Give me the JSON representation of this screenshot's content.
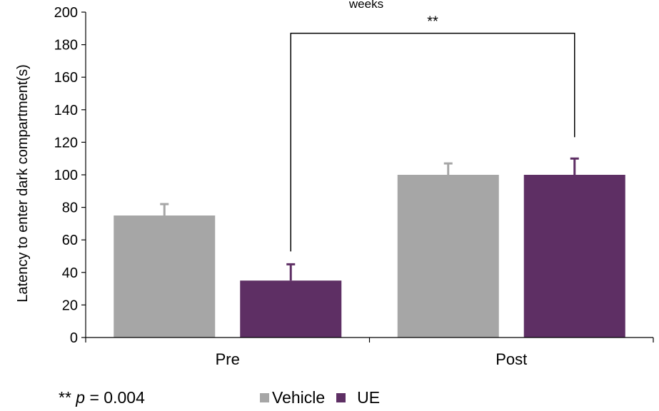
{
  "chart_data": {
    "type": "bar",
    "title": "weeks",
    "ylabel": "Latency to enter dark compartment(s)",
    "xlabel": "",
    "categories": [
      "Pre",
      "Post"
    ],
    "ylim": [
      0,
      200
    ],
    "yticks": [
      0,
      20,
      40,
      60,
      80,
      100,
      120,
      140,
      160,
      180,
      200
    ],
    "series": [
      {
        "name": "Vehicle",
        "color": "#a6a6a6",
        "values": [
          75,
          100
        ],
        "errors": [
          7,
          7
        ]
      },
      {
        "name": "UE",
        "color": "#5e2f64",
        "values": [
          35,
          100
        ],
        "errors": [
          10,
          10
        ]
      }
    ],
    "significance": {
      "label": "**",
      "from": {
        "category": "Pre",
        "series": "UE"
      },
      "to": {
        "category": "Post",
        "series": "UE"
      }
    },
    "legend_position": "bottom"
  },
  "footnote": {
    "prefix": "** ",
    "variable": "p",
    "suffix": " = 0.004"
  }
}
